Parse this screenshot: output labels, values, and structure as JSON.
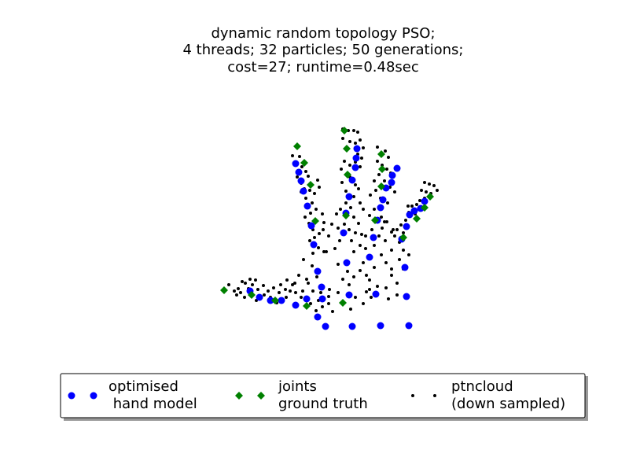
{
  "chart_data": {
    "type": "scatter",
    "title_lines": [
      "dynamic random topology PSO;",
      "4 threads; 32 particles; 50 generations;",
      "cost=27; runtime=0.48sec"
    ],
    "axes_visible": false,
    "grid": false,
    "legend_placement": "bottom-center",
    "legend": [
      {
        "name_lines": [
          "optimised",
          " hand model"
        ],
        "marker": "circle",
        "color": "#0000ff"
      },
      {
        "name_lines": [
          "joints",
          "ground truth"
        ],
        "marker": "diamond",
        "color": "#008000"
      },
      {
        "name_lines": [
          "ptncloud",
          "(down sampled)"
        ],
        "marker": "dot",
        "color": "#000000"
      }
    ],
    "series": [
      {
        "name_lines": [
          "optimised",
          " hand model"
        ],
        "marker": "circle",
        "color": "#0000ff",
        "points": [
          [
            376,
            208
          ],
          [
            380,
            219
          ],
          [
            383,
            230
          ],
          [
            386,
            243
          ],
          [
            391,
            262
          ],
          [
            396,
            287
          ],
          [
            399,
            311
          ],
          [
            404,
            345
          ],
          [
            409,
            365
          ],
          [
            410,
            380
          ],
          [
            414,
            415
          ],
          [
            404,
            403
          ],
          [
            390,
            380
          ],
          [
            376,
            388
          ],
          [
            358,
            382
          ],
          [
            344,
            382
          ],
          [
            330,
            378
          ],
          [
            318,
            370
          ],
          [
            441,
            334
          ],
          [
            437,
            296
          ],
          [
            440,
            271
          ],
          [
            444,
            250
          ],
          [
            448,
            229
          ],
          [
            452,
            213
          ],
          [
            453,
            201
          ],
          [
            454,
            189
          ],
          [
            444,
            375
          ],
          [
            448,
            415
          ],
          [
            470,
            327
          ],
          [
            475,
            302
          ],
          [
            480,
            280
          ],
          [
            484,
            264
          ],
          [
            487,
            254
          ],
          [
            491,
            239
          ],
          [
            498,
            232
          ],
          [
            499,
            223
          ],
          [
            505,
            214
          ],
          [
            478,
            374
          ],
          [
            484,
            414
          ],
          [
            511,
            304
          ],
          [
            517,
            288
          ],
          [
            521,
            273
          ],
          [
            527,
            268
          ],
          [
            535,
            265
          ],
          [
            540,
            256
          ],
          [
            515,
            340
          ],
          [
            517,
            377
          ],
          [
            520,
            414
          ]
        ]
      },
      {
        "name_lines": [
          "joints",
          "ground truth"
        ],
        "marker": "diamond",
        "color": "#008000",
        "points": [
          [
            378,
            186
          ],
          [
            387,
            207
          ],
          [
            395,
            235
          ],
          [
            401,
            281
          ],
          [
            438,
            166
          ],
          [
            441,
            189
          ],
          [
            442,
            222
          ],
          [
            440,
            274
          ],
          [
            485,
            196
          ],
          [
            486,
            215
          ],
          [
            485,
            237
          ],
          [
            477,
            280
          ],
          [
            547,
            250
          ],
          [
            540,
            264
          ],
          [
            530,
            278
          ],
          [
            513,
            302
          ],
          [
            285,
            369
          ],
          [
            320,
            375
          ],
          [
            350,
            382
          ],
          [
            390,
            389
          ],
          [
            436,
            385
          ]
        ]
      },
      {
        "name_lines": [
          "ptncloud",
          "(down sampled)"
        ],
        "marker": "dot",
        "color": "#000000",
        "points": [
          [
            372,
            198
          ],
          [
            381,
            199
          ],
          [
            376,
            210
          ],
          [
            384,
            212
          ],
          [
            389,
            218
          ],
          [
            392,
            224
          ],
          [
            378,
            225
          ],
          [
            383,
            233
          ],
          [
            387,
            240
          ],
          [
            394,
            242
          ],
          [
            400,
            246
          ],
          [
            406,
            238
          ],
          [
            404,
            229
          ],
          [
            383,
            244
          ],
          [
            389,
            252
          ],
          [
            397,
            258
          ],
          [
            402,
            266
          ],
          [
            395,
            271
          ],
          [
            388,
            276
          ],
          [
            393,
            284
          ],
          [
            398,
            292
          ],
          [
            406,
            297
          ],
          [
            411,
            292
          ],
          [
            400,
            302
          ],
          [
            394,
            306
          ],
          [
            405,
            315
          ],
          [
            412,
            320
          ],
          [
            398,
            322
          ],
          [
            386,
            330
          ],
          [
            397,
            338
          ],
          [
            403,
            352
          ],
          [
            390,
            355
          ],
          [
            380,
            350
          ],
          [
            375,
            360
          ],
          [
            392,
            360
          ],
          [
            385,
            370
          ],
          [
            398,
            370
          ],
          [
            408,
            372
          ],
          [
            419,
            368
          ],
          [
            418,
            386
          ],
          [
            410,
            390
          ],
          [
            402,
            395
          ],
          [
            415,
            320
          ],
          [
            418,
            300
          ],
          [
            422,
            285
          ],
          [
            410,
            272
          ],
          [
            412,
            283
          ],
          [
            436,
            164
          ],
          [
            443,
            166
          ],
          [
            450,
            166
          ],
          [
            455,
            168
          ],
          [
            436,
            176
          ],
          [
            445,
            180
          ],
          [
            452,
            182
          ],
          [
            458,
            178
          ],
          [
            462,
            188
          ],
          [
            455,
            196
          ],
          [
            460,
            201
          ],
          [
            452,
            206
          ],
          [
            458,
            212
          ],
          [
            445,
            210
          ],
          [
            438,
            205
          ],
          [
            434,
            215
          ],
          [
            445,
            225
          ],
          [
            452,
            235
          ],
          [
            456,
            240
          ],
          [
            440,
            243
          ],
          [
            435,
            232
          ],
          [
            450,
            250
          ],
          [
            458,
            258
          ],
          [
            462,
            266
          ],
          [
            446,
            264
          ],
          [
            440,
            258
          ],
          [
            433,
            266
          ],
          [
            428,
            272
          ],
          [
            450,
            276
          ],
          [
            456,
            284
          ],
          [
            438,
            285
          ],
          [
            430,
            290
          ],
          [
            444,
            292
          ],
          [
            452,
            296
          ],
          [
            460,
            298
          ],
          [
            458,
            312
          ],
          [
            450,
            320
          ],
          [
            447,
            306
          ],
          [
            432,
            306
          ],
          [
            426,
            316
          ],
          [
            430,
            336
          ],
          [
            442,
            345
          ],
          [
            450,
            352
          ],
          [
            436,
            355
          ],
          [
            458,
            344
          ],
          [
            466,
            350
          ],
          [
            444,
            362
          ],
          [
            430,
            372
          ],
          [
            452,
            378
          ],
          [
            462,
            386
          ],
          [
            446,
            393
          ],
          [
            470,
            368
          ],
          [
            480,
            187
          ],
          [
            490,
            192
          ],
          [
            494,
            200
          ],
          [
            480,
            205
          ],
          [
            486,
            210
          ],
          [
            492,
            215
          ],
          [
            497,
            220
          ],
          [
            482,
            222
          ],
          [
            476,
            230
          ],
          [
            489,
            230
          ],
          [
            496,
            238
          ],
          [
            502,
            244
          ],
          [
            478,
            242
          ],
          [
            471,
            248
          ],
          [
            484,
            252
          ],
          [
            493,
            258
          ],
          [
            476,
            266
          ],
          [
            470,
            274
          ],
          [
            485,
            276
          ],
          [
            492,
            282
          ],
          [
            486,
            290
          ],
          [
            473,
            292
          ],
          [
            465,
            300
          ],
          [
            482,
            300
          ],
          [
            490,
            306
          ],
          [
            476,
            312
          ],
          [
            465,
            316
          ],
          [
            485,
            324
          ],
          [
            491,
            334
          ],
          [
            498,
            342
          ],
          [
            476,
            340
          ],
          [
            462,
            334
          ],
          [
            470,
            356
          ],
          [
            480,
            364
          ],
          [
            491,
            366
          ],
          [
            498,
            350
          ],
          [
            505,
            375
          ],
          [
            494,
            380
          ],
          [
            472,
            378
          ],
          [
            466,
            371
          ],
          [
            489,
            282
          ],
          [
            500,
            292
          ],
          [
            540,
            232
          ],
          [
            546,
            234
          ],
          [
            552,
            236
          ],
          [
            556,
            242
          ],
          [
            548,
            246
          ],
          [
            542,
            244
          ],
          [
            536,
            242
          ],
          [
            540,
            252
          ],
          [
            534,
            255
          ],
          [
            530,
            260
          ],
          [
            524,
            262
          ],
          [
            520,
            270
          ],
          [
            528,
            272
          ],
          [
            516,
            280
          ],
          [
            510,
            286
          ],
          [
            505,
            292
          ],
          [
            513,
            296
          ],
          [
            502,
            300
          ],
          [
            508,
            308
          ],
          [
            513,
            318
          ],
          [
            520,
            324
          ],
          [
            498,
            318
          ],
          [
            508,
            330
          ],
          [
            513,
            342
          ],
          [
            505,
            360
          ],
          [
            498,
            295
          ],
          [
            519,
            262
          ],
          [
            291,
            362
          ],
          [
            298,
            370
          ],
          [
            306,
            372
          ],
          [
            301,
            375
          ],
          [
            311,
            378
          ],
          [
            316,
            367
          ],
          [
            312,
            360
          ],
          [
            321,
            362
          ],
          [
            325,
            356
          ],
          [
            328,
            368
          ],
          [
            336,
            375
          ],
          [
            341,
            370
          ],
          [
            348,
            366
          ],
          [
            357,
            362
          ],
          [
            363,
            368
          ],
          [
            369,
            370
          ],
          [
            364,
            378
          ],
          [
            352,
            385
          ],
          [
            372,
            362
          ],
          [
            365,
            356
          ],
          [
            355,
            372
          ],
          [
            335,
            363
          ],
          [
            326,
            382
          ],
          [
            303,
            367
          ],
          [
            308,
            358
          ],
          [
            318,
            355
          ],
          [
            344,
            378
          ],
          [
            376,
            372
          ],
          [
            383,
            378
          ],
          [
            395,
            386
          ],
          [
            405,
            382
          ],
          [
            423,
            396
          ],
          [
            418,
            377
          ]
        ]
      }
    ]
  }
}
